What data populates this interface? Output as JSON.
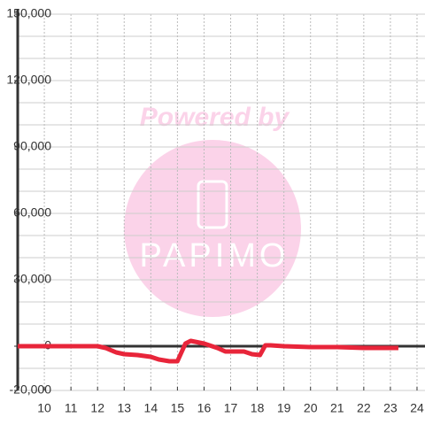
{
  "chart_data": {
    "type": "line",
    "x": [
      9,
      12,
      12.3,
      12.7,
      13,
      13.5,
      14,
      14.3,
      14.7,
      15,
      15.3,
      15.5,
      16,
      16.5,
      16.8,
      17.5,
      17.8,
      18.1,
      18.3,
      18.5,
      19,
      20,
      21,
      22,
      23.3
    ],
    "series": [
      {
        "color": "#e8253a",
        "values": [
          0,
          0,
          -800,
          -2800,
          -3600,
          -4000,
          -4800,
          -6000,
          -6800,
          -6800,
          1200,
          2400,
          1200,
          -800,
          -2400,
          -2400,
          -3600,
          -4000,
          400,
          400,
          0,
          -400,
          -400,
          -800,
          -800
        ]
      }
    ],
    "xlim": [
      9,
      24.3
    ],
    "xticks": [
      10,
      11,
      12,
      13,
      14,
      15,
      16,
      17,
      18,
      19,
      20,
      21,
      22,
      23,
      24
    ],
    "ylim": [
      -20000,
      150000
    ],
    "yticks": [
      {
        "value": -20000,
        "label": "-20,000"
      },
      0,
      {
        "value": 30000,
        "label": "30,000"
      },
      {
        "value": 60000,
        "label": "60,000"
      },
      {
        "value": 90000,
        "label": "90,000"
      },
      {
        "value": 120000,
        "label": "120,000"
      },
      {
        "value": 150000,
        "label": "150,000"
      }
    ],
    "y_minor_ticks": [
      -10000,
      10000,
      20000,
      40000,
      50000,
      70000,
      80000,
      100000,
      110000,
      130000,
      140000
    ],
    "grid": true
  },
  "watermark": {
    "title": "Powered by",
    "brand": "PAPIMO"
  }
}
